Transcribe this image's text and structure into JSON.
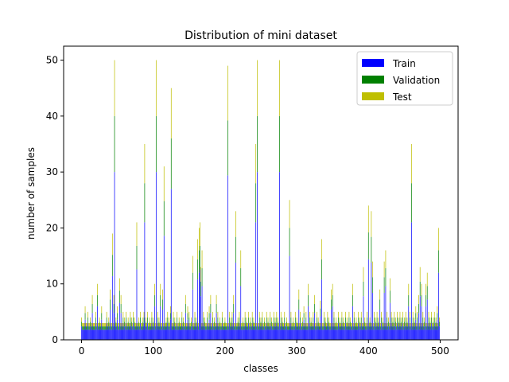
{
  "chart_data": {
    "type": "bar",
    "stacked": true,
    "title": "Distribution of mini dataset",
    "xlabel": "classes",
    "ylabel": "number of samples",
    "xlim": [
      -25,
      525
    ],
    "ylim": [
      0,
      52.5
    ],
    "xticks": [
      0,
      100,
      200,
      300,
      400,
      500
    ],
    "yticks": [
      0,
      10,
      20,
      30,
      40,
      50
    ],
    "grid": false,
    "legend_position": "top-right",
    "num_classes": 500,
    "series": [
      {
        "name": "Train",
        "color": "#0000ff",
        "share": 0.6
      },
      {
        "name": "Validation",
        "color": "#008000",
        "share": 0.2
      },
      {
        "name": "Test",
        "color": "#bfbf00",
        "share": 0.2
      }
    ],
    "totals": [
      [
        0,
        4
      ],
      [
        5,
        6
      ],
      [
        7,
        3
      ],
      [
        9,
        5
      ],
      [
        12,
        4
      ],
      [
        15,
        8
      ],
      [
        18,
        3
      ],
      [
        20,
        5
      ],
      [
        22,
        10
      ],
      [
        25,
        4
      ],
      [
        28,
        6
      ],
      [
        30,
        3
      ],
      [
        35,
        5
      ],
      [
        38,
        4
      ],
      [
        40,
        9
      ],
      [
        43,
        19
      ],
      [
        45,
        8
      ],
      [
        46,
        50
      ],
      [
        48,
        4
      ],
      [
        50,
        6
      ],
      [
        53,
        11
      ],
      [
        55,
        8
      ],
      [
        58,
        5
      ],
      [
        60,
        4
      ],
      [
        62,
        5
      ],
      [
        65,
        4
      ],
      [
        68,
        5
      ],
      [
        70,
        4
      ],
      [
        72,
        5
      ],
      [
        74,
        4
      ],
      [
        77,
        21
      ],
      [
        80,
        4
      ],
      [
        82,
        5
      ],
      [
        85,
        4
      ],
      [
        87,
        5
      ],
      [
        88,
        35
      ],
      [
        90,
        4
      ],
      [
        92,
        5
      ],
      [
        95,
        4
      ],
      [
        98,
        5
      ],
      [
        100,
        4
      ],
      [
        102,
        10
      ],
      [
        104,
        50
      ],
      [
        106,
        5
      ],
      [
        108,
        4
      ],
      [
        110,
        10
      ],
      [
        113,
        9
      ],
      [
        115,
        31
      ],
      [
        118,
        4
      ],
      [
        120,
        5
      ],
      [
        122,
        4
      ],
      [
        124,
        6
      ],
      [
        125,
        45
      ],
      [
        128,
        5
      ],
      [
        130,
        4
      ],
      [
        133,
        5
      ],
      [
        136,
        4
      ],
      [
        140,
        5
      ],
      [
        142,
        4
      ],
      [
        145,
        8
      ],
      [
        148,
        6
      ],
      [
        150,
        5
      ],
      [
        153,
        4
      ],
      [
        155,
        15
      ],
      [
        158,
        5
      ],
      [
        160,
        4
      ],
      [
        162,
        18
      ],
      [
        164,
        20
      ],
      [
        165,
        21
      ],
      [
        166,
        13
      ],
      [
        168,
        16
      ],
      [
        170,
        5
      ],
      [
        172,
        4
      ],
      [
        175,
        5
      ],
      [
        178,
        6
      ],
      [
        180,
        8
      ],
      [
        183,
        5
      ],
      [
        185,
        4
      ],
      [
        188,
        8
      ],
      [
        190,
        5
      ],
      [
        193,
        4
      ],
      [
        196,
        5
      ],
      [
        200,
        4
      ],
      [
        204,
        49
      ],
      [
        206,
        5
      ],
      [
        208,
        4
      ],
      [
        210,
        5
      ],
      [
        212,
        8
      ],
      [
        215,
        23
      ],
      [
        218,
        4
      ],
      [
        220,
        5
      ],
      [
        222,
        16
      ],
      [
        225,
        4
      ],
      [
        228,
        5
      ],
      [
        230,
        4
      ],
      [
        233,
        5
      ],
      [
        235,
        4
      ],
      [
        238,
        5
      ],
      [
        240,
        4
      ],
      [
        243,
        35
      ],
      [
        245,
        50
      ],
      [
        248,
        5
      ],
      [
        250,
        4
      ],
      [
        252,
        5
      ],
      [
        255,
        4
      ],
      [
        258,
        5
      ],
      [
        260,
        4
      ],
      [
        263,
        5
      ],
      [
        265,
        4
      ],
      [
        268,
        5
      ],
      [
        270,
        4
      ],
      [
        272,
        5
      ],
      [
        274,
        4
      ],
      [
        276,
        50
      ],
      [
        278,
        5
      ],
      [
        280,
        4
      ],
      [
        283,
        5
      ],
      [
        286,
        4
      ],
      [
        290,
        25
      ],
      [
        292,
        5
      ],
      [
        295,
        4
      ],
      [
        298,
        5
      ],
      [
        300,
        4
      ],
      [
        303,
        9
      ],
      [
        305,
        5
      ],
      [
        308,
        4
      ],
      [
        310,
        6
      ],
      [
        313,
        5
      ],
      [
        316,
        10
      ],
      [
        318,
        5
      ],
      [
        320,
        4
      ],
      [
        323,
        5
      ],
      [
        325,
        8
      ],
      [
        328,
        5
      ],
      [
        330,
        4
      ],
      [
        333,
        7
      ],
      [
        335,
        18
      ],
      [
        338,
        5
      ],
      [
        340,
        4
      ],
      [
        343,
        5
      ],
      [
        345,
        4
      ],
      [
        348,
        9
      ],
      [
        350,
        10
      ],
      [
        352,
        5
      ],
      [
        355,
        4
      ],
      [
        358,
        5
      ],
      [
        360,
        4
      ],
      [
        363,
        5
      ],
      [
        365,
        4
      ],
      [
        368,
        5
      ],
      [
        370,
        4
      ],
      [
        373,
        5
      ],
      [
        375,
        4
      ],
      [
        378,
        10
      ],
      [
        380,
        5
      ],
      [
        383,
        4
      ],
      [
        386,
        5
      ],
      [
        388,
        4
      ],
      [
        390,
        5
      ],
      [
        393,
        13
      ],
      [
        395,
        4
      ],
      [
        398,
        5
      ],
      [
        400,
        24
      ],
      [
        402,
        4
      ],
      [
        404,
        23
      ],
      [
        406,
        14
      ],
      [
        408,
        5
      ],
      [
        410,
        4
      ],
      [
        412,
        5
      ],
      [
        414,
        4
      ],
      [
        416,
        9
      ],
      [
        418,
        5
      ],
      [
        420,
        4
      ],
      [
        422,
        14
      ],
      [
        424,
        16
      ],
      [
        426,
        5
      ],
      [
        428,
        4
      ],
      [
        430,
        11
      ],
      [
        432,
        5
      ],
      [
        434,
        4
      ],
      [
        436,
        5
      ],
      [
        438,
        4
      ],
      [
        440,
        5
      ],
      [
        442,
        4
      ],
      [
        444,
        5
      ],
      [
        446,
        4
      ],
      [
        448,
        5
      ],
      [
        450,
        4
      ],
      [
        452,
        5
      ],
      [
        454,
        4
      ],
      [
        456,
        10
      ],
      [
        458,
        5
      ],
      [
        460,
        35
      ],
      [
        462,
        5
      ],
      [
        464,
        4
      ],
      [
        466,
        6
      ],
      [
        468,
        5
      ],
      [
        470,
        8
      ],
      [
        472,
        13
      ],
      [
        474,
        10
      ],
      [
        476,
        5
      ],
      [
        478,
        4
      ],
      [
        480,
        10
      ],
      [
        482,
        12
      ],
      [
        484,
        5
      ],
      [
        486,
        4
      ],
      [
        488,
        5
      ],
      [
        490,
        4
      ],
      [
        492,
        5
      ],
      [
        494,
        4
      ],
      [
        496,
        6
      ],
      [
        498,
        20
      ],
      [
        499,
        4
      ]
    ],
    "baseline_total": 3
  }
}
